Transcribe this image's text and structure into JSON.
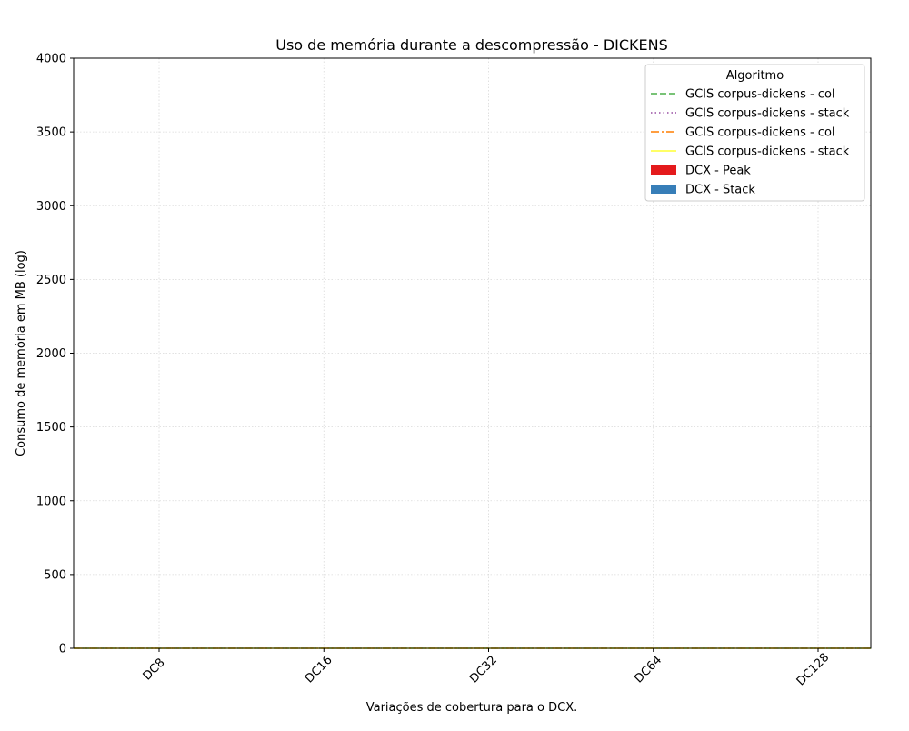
{
  "chart_data": {
    "type": "bar",
    "title": "Uso de memória durante a descompressão -  DICKENS",
    "xlabel": "Variações de cobertura para o DCX.",
    "ylabel": "Consumo de memória em MB (log)",
    "categories": [
      "DC8",
      "DC16",
      "DC32",
      "DC64",
      "DC128"
    ],
    "ylim": [
      0,
      4000
    ],
    "yticks": [
      0,
      500,
      1000,
      1500,
      2000,
      2500,
      3000,
      3500,
      4000
    ],
    "grid": true,
    "legend": {
      "title": "Algoritmo",
      "placement": "top-right",
      "entries": [
        {
          "label": "GCIS corpus-dickens - col",
          "kind": "line",
          "color": "#4daf4a",
          "dash": "dashed"
        },
        {
          "label": "GCIS corpus-dickens - stack",
          "kind": "line",
          "color": "#984ea3",
          "dash": "dotted"
        },
        {
          "label": "GCIS corpus-dickens - col",
          "kind": "line",
          "color": "#ff7f00",
          "dash": "dashdot"
        },
        {
          "label": "GCIS corpus-dickens - stack",
          "kind": "line",
          "color": "#ffff33",
          "dash": "solid"
        },
        {
          "label": "DCX - Peak",
          "kind": "bar",
          "color": "#e41a1c"
        },
        {
          "label": "DCX - Stack",
          "kind": "bar",
          "color": "#377eb8"
        }
      ]
    },
    "series": [
      {
        "name": "GCIS corpus-dickens - col",
        "kind": "line",
        "color": "#4daf4a",
        "dash": "dashed",
        "values": [
          0,
          0,
          0,
          0,
          0
        ]
      },
      {
        "name": "GCIS corpus-dickens - stack",
        "kind": "line",
        "color": "#984ea3",
        "dash": "dotted",
        "values": [
          0,
          0,
          0,
          0,
          0
        ]
      },
      {
        "name": "GCIS corpus-dickens - col",
        "kind": "line",
        "color": "#ff7f00",
        "dash": "dashdot",
        "values": [
          0,
          0,
          0,
          0,
          0
        ]
      },
      {
        "name": "GCIS corpus-dickens - stack",
        "kind": "line",
        "color": "#ffff33",
        "dash": "solid",
        "values": [
          0,
          0,
          0,
          0,
          0
        ]
      },
      {
        "name": "DCX - Peak",
        "kind": "bar",
        "color": "#e41a1c",
        "values": [
          0,
          0,
          0,
          0,
          0
        ]
      },
      {
        "name": "DCX - Stack",
        "kind": "bar",
        "color": "#377eb8",
        "values": [
          0,
          0,
          0,
          0,
          0
        ]
      }
    ]
  }
}
